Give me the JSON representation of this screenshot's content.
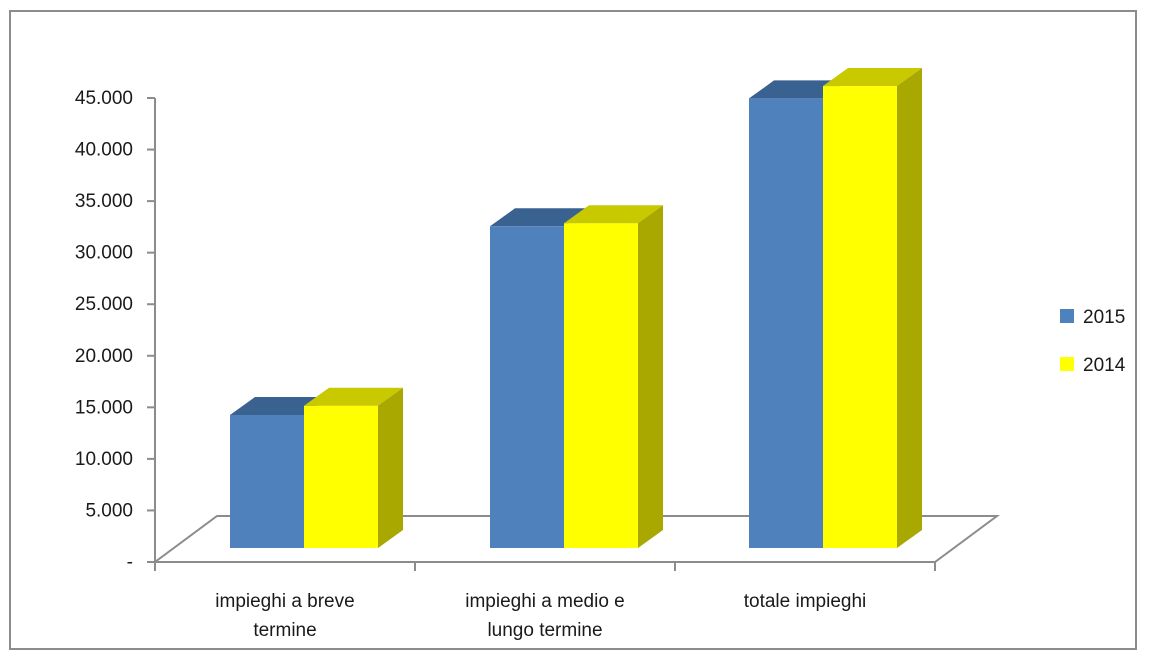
{
  "chart_data": {
    "type": "bar",
    "title": "",
    "xlabel": "",
    "ylabel": "",
    "categories": [
      [
        "impieghi a breve",
        "termine"
      ],
      [
        "impieghi a medio e",
        "lungo termine"
      ],
      [
        "totale impieghi"
      ]
    ],
    "series": [
      {
        "name": "2015",
        "values": [
          12900,
          31200,
          43600
        ],
        "color": "#4f81bd",
        "top_color": "#3a6291",
        "side_color": "#3a6291"
      },
      {
        "name": "2014",
        "values": [
          13800,
          31500,
          44800
        ],
        "color": "#ffff00",
        "top_color": "#c9c900",
        "side_color": "#a8a800"
      }
    ],
    "ylim": [
      0,
      45000
    ],
    "yticks": [
      0,
      5000,
      10000,
      15000,
      20000,
      25000,
      30000,
      35000,
      40000,
      45000
    ],
    "ytick_labels": [
      "-",
      "5.000",
      "10.000",
      "15.000",
      "20.000",
      "25.000",
      "30.000",
      "35.000",
      "40.000",
      "45.000"
    ],
    "grid": false,
    "three_d": true,
    "legend_position": "right"
  }
}
